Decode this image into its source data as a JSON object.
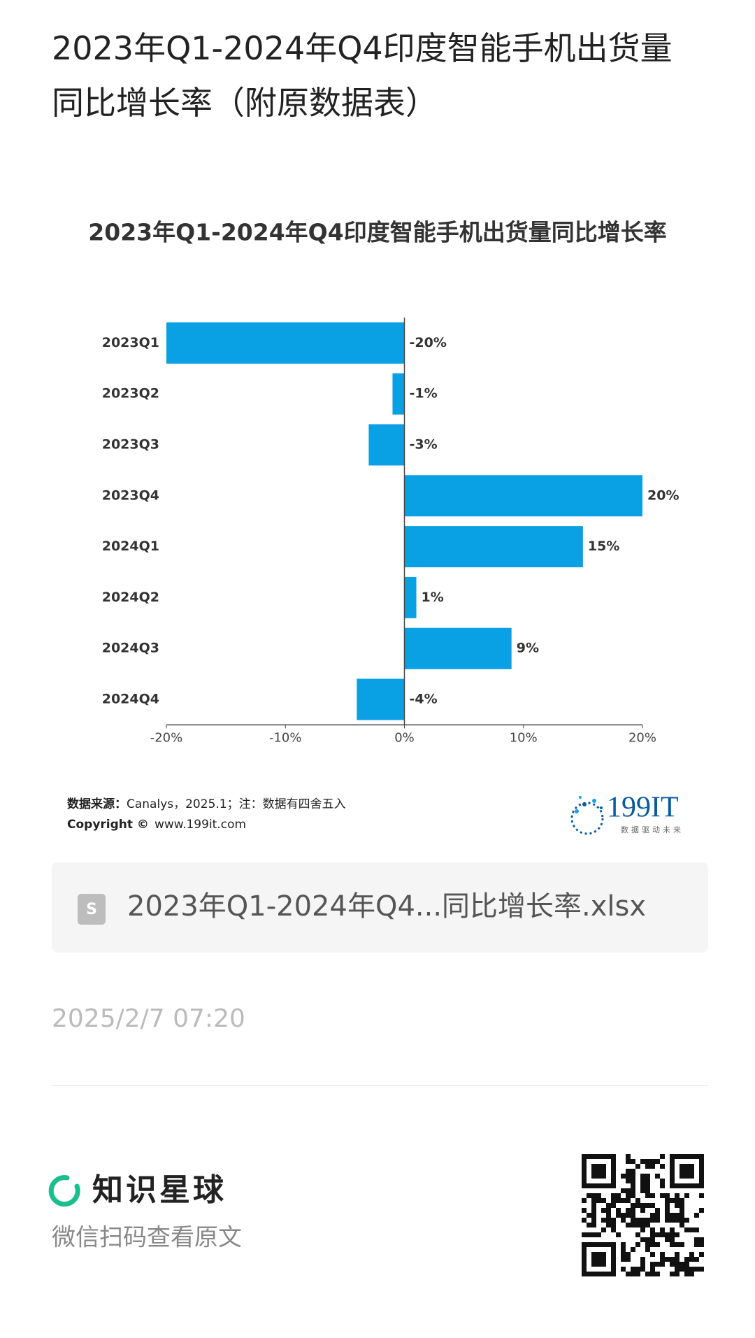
{
  "header": {
    "title": "2023年Q1-2024年Q4印度智能手机出货量同比增长率（附原数据表）"
  },
  "chart_data": {
    "type": "barh",
    "title": "2023年Q1-2024年Q4印度智能手机出货量同比增长率",
    "categories": [
      "2023Q1",
      "2023Q2",
      "2023Q3",
      "2023Q4",
      "2024Q1",
      "2024Q2",
      "2024Q3",
      "2024Q4"
    ],
    "values": [
      -20,
      -1,
      -3,
      20,
      15,
      1,
      9,
      -4
    ],
    "value_labels": [
      "-20%",
      "-1%",
      "-3%",
      "20%",
      "15%",
      "1%",
      "9%",
      "-4%"
    ],
    "color": "#0aa0e4",
    "xlim": [
      -20,
      20
    ],
    "xticks": [
      {
        "value": -20,
        "label": "-20%"
      },
      {
        "value": -10,
        "label": "-10%"
      },
      {
        "value": 0,
        "label": "0%"
      },
      {
        "value": 10,
        "label": "10%"
      },
      {
        "value": 20,
        "label": "20%"
      }
    ],
    "grid": false
  },
  "source": {
    "label": "数据来源：",
    "text": "Canalys，2025.1；注：数据有四舍五入"
  },
  "copyright": {
    "label": "Copyright ©",
    "text": "www.199it.com"
  },
  "logo": {
    "name": "199IT",
    "slogan": "数据驱动未来"
  },
  "file": {
    "name": "2023年Q1-2024年Q4...同比增长率.xlsx"
  },
  "date": "2025/2/7 07:20",
  "footer": {
    "brand": "知识星球",
    "hint": "微信扫码查看原文"
  }
}
